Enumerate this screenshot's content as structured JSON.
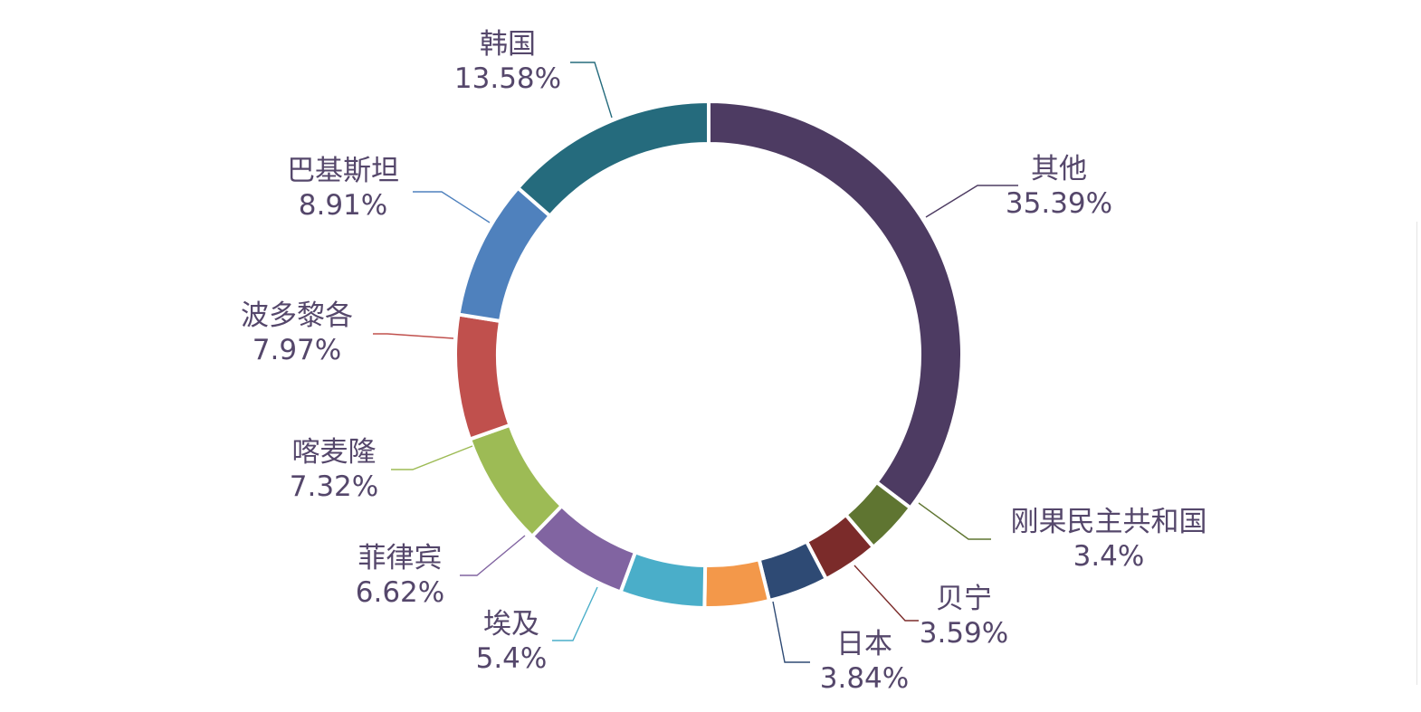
{
  "chart_data": {
    "type": "pie",
    "variant": "donut",
    "title": "",
    "slices": [
      {
        "name": "其他",
        "value": 35.39,
        "label": "35.39%",
        "color": "#4d3b62"
      },
      {
        "name": "刚果民主共和国",
        "value": 3.4,
        "label": "3.4%",
        "color": "#5f7531"
      },
      {
        "name": "贝宁",
        "value": 3.59,
        "label": "3.59%",
        "color": "#7b2b2a"
      },
      {
        "name": "日本",
        "value": 3.84,
        "label": "3.84%",
        "color": "#2e4a74"
      },
      {
        "name": "",
        "value": 4.11,
        "label": "",
        "color": "#f3984a"
      },
      {
        "name": "埃及",
        "value": 5.4,
        "label": "5.4%",
        "color": "#4aaec9"
      },
      {
        "name": "菲律宾",
        "value": 6.62,
        "label": "6.62%",
        "color": "#8164a1"
      },
      {
        "name": "喀麦隆",
        "value": 7.32,
        "label": "7.32%",
        "color": "#9dbb55"
      },
      {
        "name": "波多黎各",
        "value": 7.97,
        "label": "7.97%",
        "color": "#c0504d"
      },
      {
        "name": "巴基斯坦",
        "value": 8.91,
        "label": "8.91%",
        "color": "#4f81bd"
      },
      {
        "name": "韩国",
        "value": 13.58,
        "label": "13.58%",
        "color": "#256b7d"
      }
    ]
  }
}
